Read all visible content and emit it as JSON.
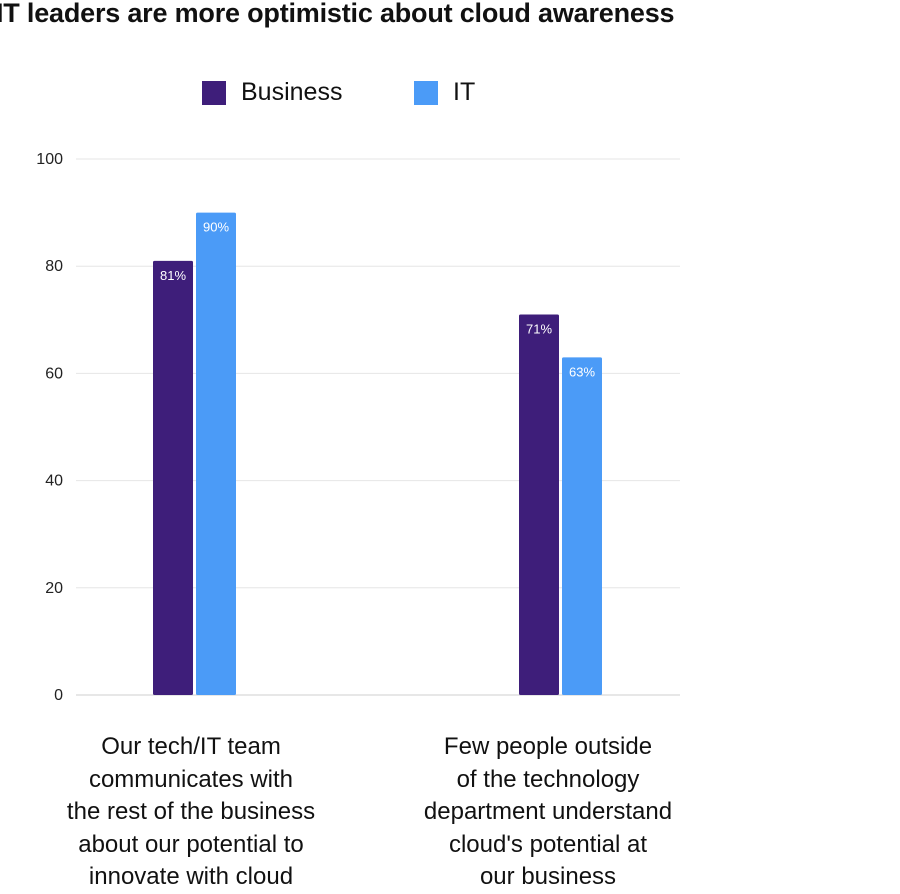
{
  "chart_data": {
    "type": "bar",
    "title": "IT leaders are more optimistic about cloud awareness",
    "categories": [
      [
        "Our tech/IT team",
        "communicates with",
        "the rest of the business",
        "about our potential to",
        "innovate with cloud"
      ],
      [
        "Few people outside",
        "of the technology",
        "department understand",
        "cloud's potential at",
        "our business"
      ]
    ],
    "series": [
      {
        "name": "Business",
        "color": "#3e1e7a",
        "values": [
          81,
          71
        ],
        "labels": [
          "81%",
          "71%"
        ]
      },
      {
        "name": "IT",
        "color": "#4b9bf7",
        "values": [
          90,
          63
        ],
        "labels": [
          "90%",
          "63%"
        ]
      }
    ],
    "yticks": [
      0,
      20,
      40,
      60,
      80,
      100
    ],
    "ylim": [
      0,
      100
    ],
    "xlabel": "",
    "ylabel": "",
    "grid": true,
    "legend": "top-center"
  }
}
